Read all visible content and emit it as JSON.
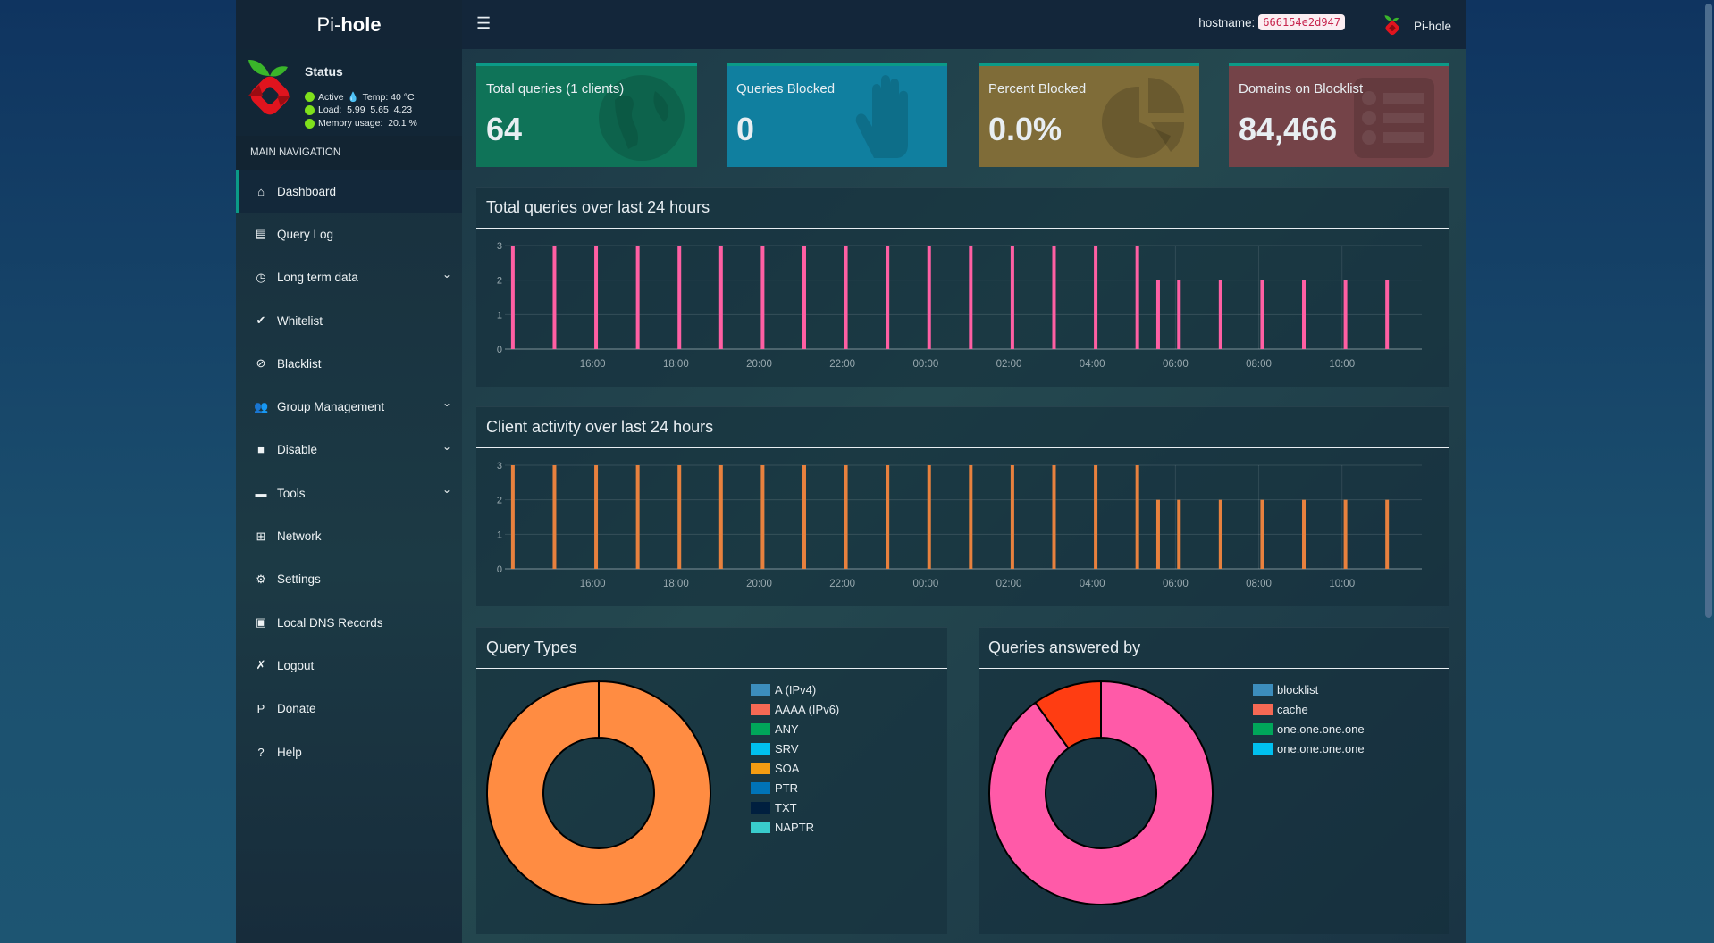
{
  "app": {
    "logo_pre": "Pi-",
    "logo_bold": "hole"
  },
  "status": {
    "title": "Status",
    "active": "Active",
    "temp": "Temp: 40 °C",
    "load": "Load:  5.99  5.65  4.23",
    "memory": "Memory usage:  20.1 %"
  },
  "nav": {
    "header": "MAIN NAVIGATION",
    "items": [
      {
        "label": "Dashboard",
        "icon": "home-icon",
        "glyph": "⌂",
        "active": true
      },
      {
        "label": "Query Log",
        "icon": "file-icon",
        "glyph": "▤"
      },
      {
        "label": "Long term data",
        "icon": "clock-icon",
        "glyph": "◷",
        "chevron": true
      },
      {
        "label": "Whitelist",
        "icon": "check-circle-icon",
        "glyph": "✔"
      },
      {
        "label": "Blacklist",
        "icon": "ban-icon",
        "glyph": "⊘"
      },
      {
        "label": "Group Management",
        "icon": "users-cog-icon",
        "glyph": "👥",
        "chevron": true
      },
      {
        "label": "Disable",
        "icon": "stop-icon",
        "glyph": "■",
        "chevron": true
      },
      {
        "label": "Tools",
        "icon": "folder-icon",
        "glyph": "▬",
        "chevron": true
      },
      {
        "label": "Network",
        "icon": "network-icon",
        "glyph": "⊞"
      },
      {
        "label": "Settings",
        "icon": "cogs-icon",
        "glyph": "⚙"
      },
      {
        "label": "Local DNS Records",
        "icon": "address-book-icon",
        "glyph": "▣"
      },
      {
        "label": "Logout",
        "icon": "user-times-icon",
        "glyph": "✗"
      },
      {
        "label": "Donate",
        "icon": "paypal-icon",
        "glyph": "P"
      },
      {
        "label": "Help",
        "icon": "question-circle-icon",
        "glyph": "?"
      }
    ]
  },
  "header": {
    "menu_icon": "bars-icon",
    "hostname_label": "hostname:",
    "hostname": "666154e2d947",
    "user": "Pi-hole"
  },
  "cards": [
    {
      "label": "Total queries (1 clients)",
      "value": "64",
      "color": "#0f7358",
      "icon": "globe-icon"
    },
    {
      "label": "Queries Blocked",
      "value": "0",
      "color": "#107f9f",
      "icon": "hand-icon"
    },
    {
      "label": "Percent Blocked",
      "value": "0.0%",
      "color": "#7f6c38",
      "icon": "pie-chart-icon"
    },
    {
      "label": "Domains on Blocklist",
      "value": "84,466",
      "color": "#744348",
      "icon": "list-icon"
    }
  ],
  "chart_data": [
    {
      "type": "bar",
      "title": "Total queries over last 24 hours",
      "color": "#ff5fa3",
      "ylim": [
        0,
        3
      ],
      "yticks": [
        0,
        1,
        2,
        3
      ],
      "xlim": [
        "14:00",
        "11:55"
      ],
      "xticks": [
        "16:00",
        "18:00",
        "20:00",
        "22:00",
        "00:00",
        "02:00",
        "04:00",
        "06:00",
        "08:00",
        "10:00"
      ],
      "grid": true,
      "x": [
        "14:05",
        "15:05",
        "16:05",
        "17:05",
        "18:05",
        "19:05",
        "20:05",
        "21:05",
        "22:05",
        "23:05",
        "00:05",
        "01:05",
        "02:05",
        "03:05",
        "04:05",
        "05:05",
        "05:35",
        "06:05",
        "07:05",
        "08:05",
        "09:05",
        "10:05",
        "11:05"
      ],
      "values": [
        3,
        3,
        3,
        3,
        3,
        3,
        3,
        3,
        3,
        3,
        3,
        3,
        3,
        3,
        3,
        3,
        2,
        2,
        2,
        2,
        2,
        2,
        2
      ]
    },
    {
      "type": "bar",
      "title": "Client activity over last 24 hours",
      "color": "#e8813e",
      "ylim": [
        0,
        3
      ],
      "yticks": [
        0,
        1,
        2,
        3
      ],
      "xlim": [
        "14:00",
        "11:55"
      ],
      "xticks": [
        "16:00",
        "18:00",
        "20:00",
        "22:00",
        "00:00",
        "02:00",
        "04:00",
        "06:00",
        "08:00",
        "10:00"
      ],
      "grid": true,
      "x": [
        "14:05",
        "15:05",
        "16:05",
        "17:05",
        "18:05",
        "19:05",
        "20:05",
        "21:05",
        "22:05",
        "23:05",
        "00:05",
        "01:05",
        "02:05",
        "03:05",
        "04:05",
        "05:05",
        "05:35",
        "06:05",
        "07:05",
        "08:05",
        "09:05",
        "10:05",
        "11:05"
      ],
      "values": [
        3,
        3,
        3,
        3,
        3,
        3,
        3,
        3,
        3,
        3,
        3,
        3,
        3,
        3,
        3,
        3,
        2,
        2,
        2,
        2,
        2,
        2,
        2
      ]
    },
    {
      "type": "pie",
      "title": "Query Types",
      "legend_placement": "right",
      "legend": [
        {
          "name": "A (IPv4)",
          "color": "#3c8dbc"
        },
        {
          "name": "AAAA (IPv6)",
          "color": "#f56954"
        },
        {
          "name": "ANY",
          "color": "#00a65a"
        },
        {
          "name": "SRV",
          "color": "#00c0ef"
        },
        {
          "name": "SOA",
          "color": "#f39c12"
        },
        {
          "name": "PTR",
          "color": "#0073b7"
        },
        {
          "name": "TXT",
          "color": "#001f3f"
        },
        {
          "name": "NAPTR",
          "color": "#39cccc"
        }
      ],
      "slices": [
        {
          "value": 100,
          "color": "#ff8c42"
        }
      ]
    },
    {
      "type": "pie",
      "title": "Queries answered by",
      "legend_placement": "right",
      "legend": [
        {
          "name": "blocklist",
          "color": "#3c8dbc"
        },
        {
          "name": "cache",
          "color": "#f56954"
        },
        {
          "name": "one.one.one.one",
          "color": "#00a65a"
        },
        {
          "name": "one.one.one.one",
          "color": "#00c0ef"
        }
      ],
      "slices": [
        {
          "value": 90,
          "color": "#ff5aa8"
        },
        {
          "value": 10,
          "color": "#ff3d12"
        }
      ]
    }
  ]
}
